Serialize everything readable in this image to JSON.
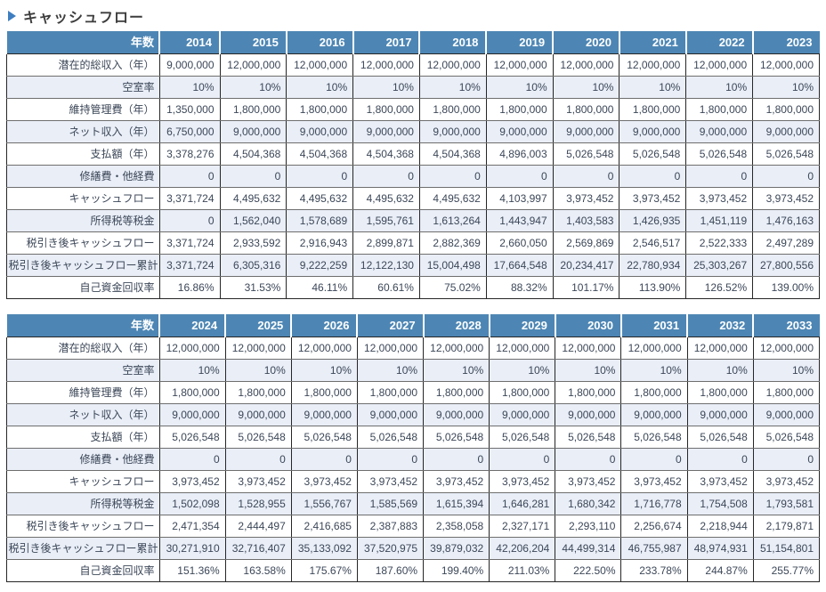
{
  "title": {
    "marker_icon": "right-triangle-icon",
    "text": "キャッシュフロー"
  },
  "colors": {
    "header_bg": "#4d86b4",
    "alt_row_bg": "#e9eef7",
    "border_dark": "#262626",
    "border_row": "#6e6e6e",
    "body_text": "#3c4758",
    "title_marker": "#3e7ec1",
    "header_text": "#ffffff"
  },
  "tables": [
    {
      "name": "cashflow-2014-2023",
      "year_header_label": "年数",
      "years": [
        "2014",
        "2015",
        "2016",
        "2017",
        "2018",
        "2019",
        "2020",
        "2021",
        "2022",
        "2023"
      ],
      "rows": [
        {
          "label": "潜在的総収入（年）",
          "values": [
            "9,000,000",
            "12,000,000",
            "12,000,000",
            "12,000,000",
            "12,000,000",
            "12,000,000",
            "12,000,000",
            "12,000,000",
            "12,000,000",
            "12,000,000"
          ]
        },
        {
          "label": "空室率",
          "values": [
            "10%",
            "10%",
            "10%",
            "10%",
            "10%",
            "10%",
            "10%",
            "10%",
            "10%",
            "10%"
          ]
        },
        {
          "label": "維持管理費（年）",
          "values": [
            "1,350,000",
            "1,800,000",
            "1,800,000",
            "1,800,000",
            "1,800,000",
            "1,800,000",
            "1,800,000",
            "1,800,000",
            "1,800,000",
            "1,800,000"
          ]
        },
        {
          "label": "ネット収入（年）",
          "values": [
            "6,750,000",
            "9,000,000",
            "9,000,000",
            "9,000,000",
            "9,000,000",
            "9,000,000",
            "9,000,000",
            "9,000,000",
            "9,000,000",
            "9,000,000"
          ]
        },
        {
          "label": "支払額（年）",
          "values": [
            "3,378,276",
            "4,504,368",
            "4,504,368",
            "4,504,368",
            "4,504,368",
            "4,896,003",
            "5,026,548",
            "5,026,548",
            "5,026,548",
            "5,026,548"
          ]
        },
        {
          "label": "修繕費・他経費",
          "values": [
            "0",
            "0",
            "0",
            "0",
            "0",
            "0",
            "0",
            "0",
            "0",
            "0"
          ]
        },
        {
          "label": "キャッシュフロー",
          "values": [
            "3,371,724",
            "4,495,632",
            "4,495,632",
            "4,495,632",
            "4,495,632",
            "4,103,997",
            "3,973,452",
            "3,973,452",
            "3,973,452",
            "3,973,452"
          ]
        },
        {
          "label": "所得税等税金",
          "values": [
            "0",
            "1,562,040",
            "1,578,689",
            "1,595,761",
            "1,613,264",
            "1,443,947",
            "1,403,583",
            "1,426,935",
            "1,451,119",
            "1,476,163"
          ]
        },
        {
          "label": "税引き後キャッシュフロー",
          "values": [
            "3,371,724",
            "2,933,592",
            "2,916,943",
            "2,899,871",
            "2,882,369",
            "2,660,050",
            "2,569,869",
            "2,546,517",
            "2,522,333",
            "2,497,289"
          ]
        },
        {
          "label": "税引き後キャッシュフロー累計",
          "values": [
            "3,371,724",
            "6,305,316",
            "9,222,259",
            "12,122,130",
            "15,004,498",
            "17,664,548",
            "20,234,417",
            "22,780,934",
            "25,303,267",
            "27,800,556"
          ]
        },
        {
          "label": "自己資金回収率",
          "values": [
            "16.86%",
            "31.53%",
            "46.11%",
            "60.61%",
            "75.02%",
            "88.32%",
            "101.17%",
            "113.90%",
            "126.52%",
            "139.00%"
          ]
        }
      ]
    },
    {
      "name": "cashflow-2024-2033",
      "year_header_label": "年数",
      "years": [
        "2024",
        "2025",
        "2026",
        "2027",
        "2028",
        "2029",
        "2030",
        "2031",
        "2032",
        "2033"
      ],
      "rows": [
        {
          "label": "潜在的総収入（年）",
          "values": [
            "12,000,000",
            "12,000,000",
            "12,000,000",
            "12,000,000",
            "12,000,000",
            "12,000,000",
            "12,000,000",
            "12,000,000",
            "12,000,000",
            "12,000,000"
          ]
        },
        {
          "label": "空室率",
          "values": [
            "10%",
            "10%",
            "10%",
            "10%",
            "10%",
            "10%",
            "10%",
            "10%",
            "10%",
            "10%"
          ]
        },
        {
          "label": "維持管理費（年）",
          "values": [
            "1,800,000",
            "1,800,000",
            "1,800,000",
            "1,800,000",
            "1,800,000",
            "1,800,000",
            "1,800,000",
            "1,800,000",
            "1,800,000",
            "1,800,000"
          ]
        },
        {
          "label": "ネット収入（年）",
          "values": [
            "9,000,000",
            "9,000,000",
            "9,000,000",
            "9,000,000",
            "9,000,000",
            "9,000,000",
            "9,000,000",
            "9,000,000",
            "9,000,000",
            "9,000,000"
          ]
        },
        {
          "label": "支払額（年）",
          "values": [
            "5,026,548",
            "5,026,548",
            "5,026,548",
            "5,026,548",
            "5,026,548",
            "5,026,548",
            "5,026,548",
            "5,026,548",
            "5,026,548",
            "5,026,548"
          ]
        },
        {
          "label": "修繕費・他経費",
          "values": [
            "0",
            "0",
            "0",
            "0",
            "0",
            "0",
            "0",
            "0",
            "0",
            "0"
          ]
        },
        {
          "label": "キャッシュフロー",
          "values": [
            "3,973,452",
            "3,973,452",
            "3,973,452",
            "3,973,452",
            "3,973,452",
            "3,973,452",
            "3,973,452",
            "3,973,452",
            "3,973,452",
            "3,973,452"
          ]
        },
        {
          "label": "所得税等税金",
          "values": [
            "1,502,098",
            "1,528,955",
            "1,556,767",
            "1,585,569",
            "1,615,394",
            "1,646,281",
            "1,680,342",
            "1,716,778",
            "1,754,508",
            "1,793,581"
          ]
        },
        {
          "label": "税引き後キャッシュフロー",
          "values": [
            "2,471,354",
            "2,444,497",
            "2,416,685",
            "2,387,883",
            "2,358,058",
            "2,327,171",
            "2,293,110",
            "2,256,674",
            "2,218,944",
            "2,179,871"
          ]
        },
        {
          "label": "税引き後キャッシュフロー累計",
          "values": [
            "30,271,910",
            "32,716,407",
            "35,133,092",
            "37,520,975",
            "39,879,032",
            "42,206,204",
            "44,499,314",
            "46,755,987",
            "48,974,931",
            "51,154,801"
          ]
        },
        {
          "label": "自己資金回収率",
          "values": [
            "151.36%",
            "163.58%",
            "175.67%",
            "187.60%",
            "199.40%",
            "211.03%",
            "222.50%",
            "233.78%",
            "244.87%",
            "255.77%"
          ]
        }
      ]
    }
  ]
}
